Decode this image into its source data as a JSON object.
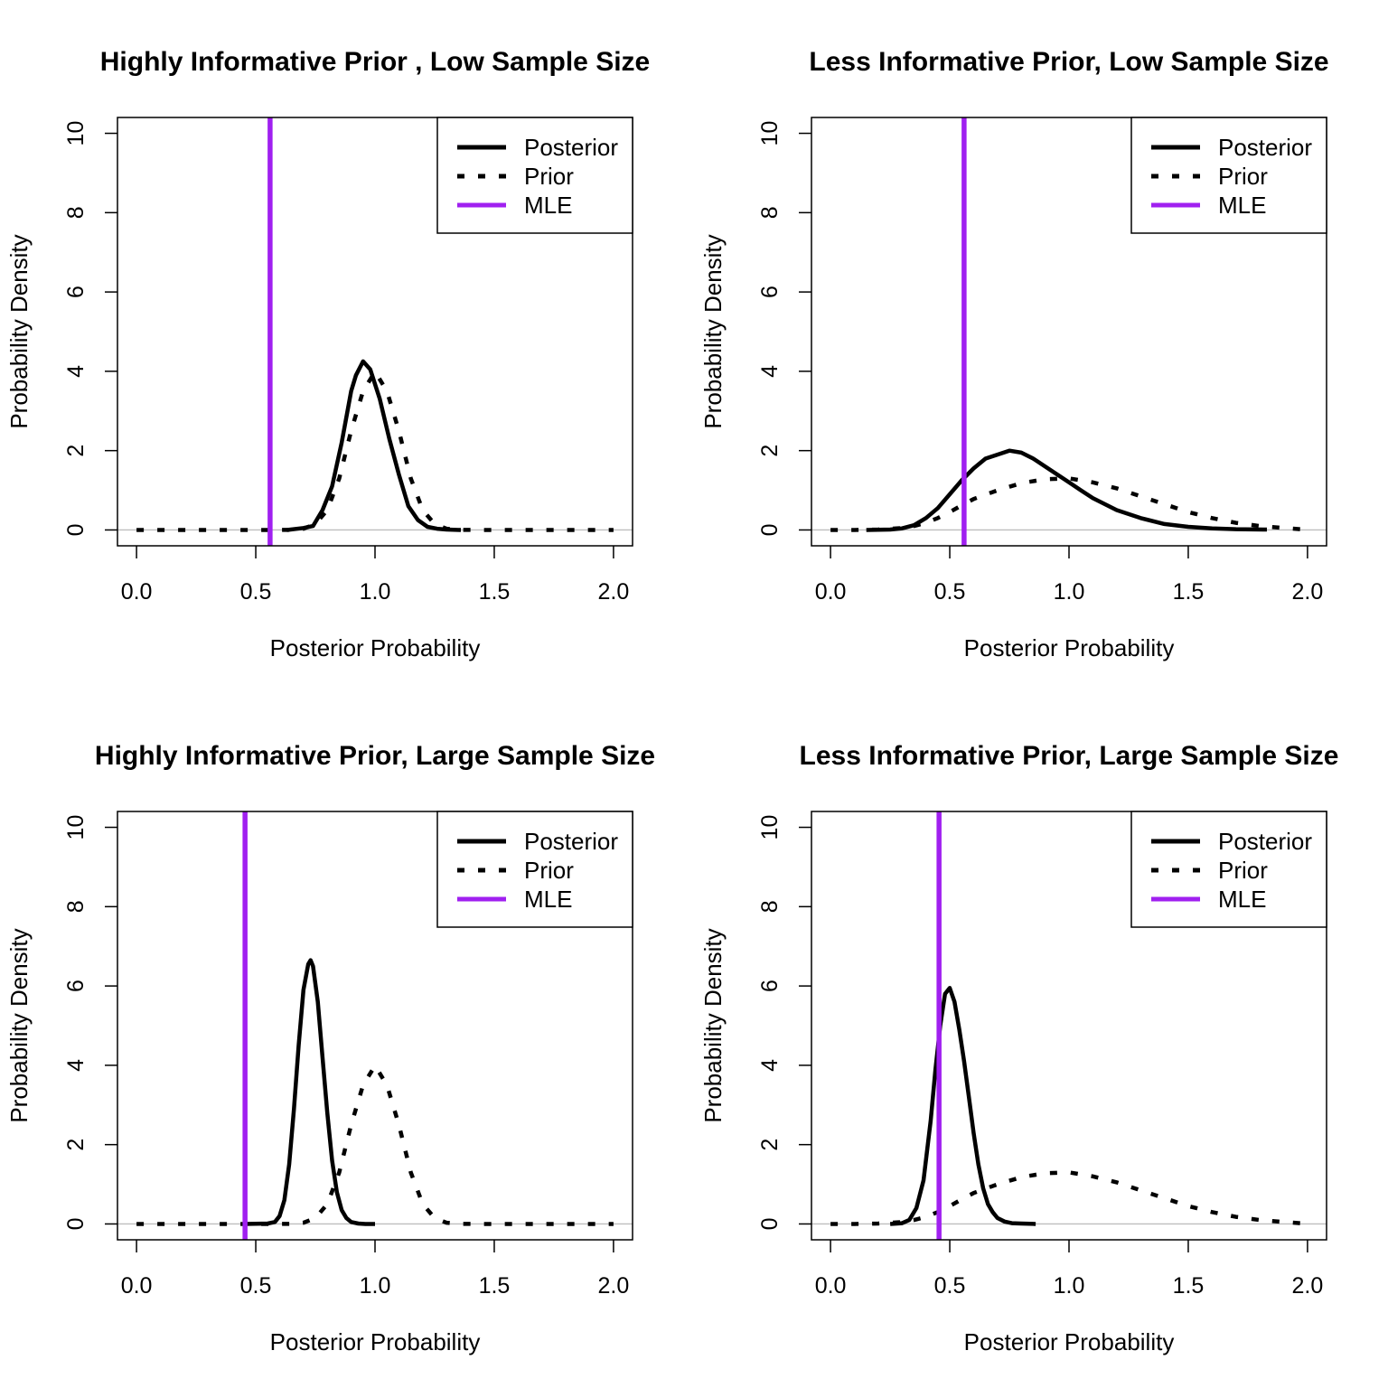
{
  "legend": {
    "entries": [
      "Posterior",
      "Prior",
      "MLE"
    ],
    "placement": "top-right"
  },
  "colors": {
    "posterior": "#000000",
    "prior": "#000000",
    "mle": "#a020f0",
    "zero_line": "#bebebe"
  },
  "chart_data": [
    {
      "type": "line",
      "title": "Highly Informative Prior , Low Sample Size",
      "xlabel": "Posterior Probability",
      "ylabel": "Probability Density",
      "xlim": [
        0,
        2
      ],
      "ylim": [
        0,
        10
      ],
      "xticks": [
        "0.0",
        "0.5",
        "1.0",
        "1.5",
        "2.0"
      ],
      "yticks": [
        "0",
        "2",
        "4",
        "6",
        "8",
        "10"
      ],
      "mle": 0.56,
      "series": [
        {
          "name": "Posterior",
          "x": [
            0.63,
            0.7,
            0.74,
            0.78,
            0.82,
            0.86,
            0.9,
            0.92,
            0.95,
            0.98,
            1.02,
            1.06,
            1.1,
            1.14,
            1.18,
            1.22,
            1.26,
            1.3,
            1.36
          ],
          "y": [
            0.0,
            0.05,
            0.1,
            0.5,
            1.1,
            2.2,
            3.5,
            3.9,
            4.25,
            4.05,
            3.3,
            2.3,
            1.4,
            0.6,
            0.25,
            0.08,
            0.03,
            0.01,
            0.0
          ]
        },
        {
          "name": "Prior",
          "x": [
            0.0,
            0.1,
            0.2,
            0.3,
            0.4,
            0.5,
            0.6,
            0.65,
            0.7,
            0.75,
            0.8,
            0.85,
            0.9,
            0.95,
            1.0,
            1.05,
            1.1,
            1.15,
            1.2,
            1.25,
            1.3,
            1.35,
            1.4,
            1.5,
            1.6,
            1.7,
            1.8,
            1.9,
            2.0
          ],
          "y": [
            0,
            0,
            0,
            0,
            0,
            0,
            0.001,
            0.004,
            0.03,
            0.15,
            0.5,
            1.3,
            2.5,
            3.5,
            3.99,
            3.5,
            2.5,
            1.3,
            0.5,
            0.15,
            0.03,
            0.004,
            0.001,
            0,
            0,
            0,
            0,
            0,
            0
          ]
        }
      ]
    },
    {
      "type": "line",
      "title": "Less Informative Prior, Low Sample Size",
      "xlabel": "Posterior Probability",
      "ylabel": "Probability Density",
      "xlim": [
        0,
        2
      ],
      "ylim": [
        0,
        10
      ],
      "xticks": [
        "0.0",
        "0.5",
        "1.0",
        "1.5",
        "2.0"
      ],
      "yticks": [
        "0",
        "2",
        "4",
        "6",
        "8",
        "10"
      ],
      "mle": 0.56,
      "series": [
        {
          "name": "Posterior",
          "x": [
            0.15,
            0.25,
            0.3,
            0.35,
            0.4,
            0.45,
            0.5,
            0.55,
            0.6,
            0.65,
            0.7,
            0.75,
            0.8,
            0.85,
            0.9,
            0.95,
            1.0,
            1.05,
            1.1,
            1.2,
            1.3,
            1.4,
            1.5,
            1.6,
            1.7,
            1.83
          ],
          "y": [
            0.0,
            0.01,
            0.04,
            0.12,
            0.3,
            0.55,
            0.9,
            1.25,
            1.55,
            1.8,
            1.9,
            2.0,
            1.95,
            1.8,
            1.6,
            1.4,
            1.2,
            1.0,
            0.8,
            0.5,
            0.3,
            0.15,
            0.08,
            0.04,
            0.02,
            0.01
          ]
        },
        {
          "name": "Prior",
          "x": [
            0.0,
            0.1,
            0.2,
            0.3,
            0.35,
            0.4,
            0.45,
            0.5,
            0.55,
            0.6,
            0.7,
            0.8,
            0.9,
            1.0,
            1.1,
            1.2,
            1.3,
            1.4,
            1.5,
            1.6,
            1.7,
            1.8,
            1.9,
            1.97
          ],
          "y": [
            0,
            0.0,
            0.01,
            0.05,
            0.1,
            0.18,
            0.3,
            0.45,
            0.62,
            0.78,
            1.0,
            1.18,
            1.28,
            1.3,
            1.2,
            1.05,
            0.85,
            0.65,
            0.45,
            0.3,
            0.18,
            0.1,
            0.05,
            0.02
          ]
        }
      ]
    },
    {
      "type": "line",
      "title": "Highly Informative Prior, Large Sample Size",
      "xlabel": "Posterior Probability",
      "ylabel": "Probability Density",
      "xlim": [
        0,
        2
      ],
      "ylim": [
        0,
        10
      ],
      "xticks": [
        "0.0",
        "0.5",
        "1.0",
        "1.5",
        "2.0"
      ],
      "yticks": [
        "0",
        "2",
        "4",
        "6",
        "8",
        "10"
      ],
      "mle": 0.455,
      "series": [
        {
          "name": "Posterior",
          "x": [
            0.45,
            0.55,
            0.58,
            0.6,
            0.62,
            0.64,
            0.66,
            0.68,
            0.7,
            0.72,
            0.73,
            0.74,
            0.76,
            0.78,
            0.8,
            0.82,
            0.84,
            0.86,
            0.88,
            0.9,
            0.93,
            0.96,
            1.0
          ],
          "y": [
            0.0,
            0.01,
            0.05,
            0.2,
            0.6,
            1.5,
            2.9,
            4.5,
            5.9,
            6.55,
            6.65,
            6.5,
            5.6,
            4.2,
            2.8,
            1.6,
            0.8,
            0.35,
            0.15,
            0.05,
            0.01,
            0.0,
            0.0
          ]
        },
        {
          "name": "Prior",
          "x": [
            0.0,
            0.1,
            0.2,
            0.3,
            0.4,
            0.5,
            0.6,
            0.65,
            0.7,
            0.75,
            0.8,
            0.85,
            0.9,
            0.95,
            1.0,
            1.05,
            1.1,
            1.15,
            1.2,
            1.25,
            1.3,
            1.35,
            1.4,
            1.5,
            1.6,
            1.7,
            1.8,
            1.9,
            2.0
          ],
          "y": [
            0,
            0,
            0,
            0,
            0,
            0,
            0.001,
            0.004,
            0.03,
            0.15,
            0.5,
            1.3,
            2.5,
            3.5,
            3.99,
            3.5,
            2.5,
            1.3,
            0.5,
            0.15,
            0.03,
            0.004,
            0.001,
            0,
            0,
            0,
            0,
            0,
            0
          ]
        }
      ]
    },
    {
      "type": "line",
      "title": "Less Informative Prior, Large Sample Size",
      "xlabel": "Posterior Probability",
      "ylabel": "Probability Density",
      "xlim": [
        0,
        2
      ],
      "ylim": [
        0,
        10
      ],
      "xticks": [
        "0.0",
        "0.5",
        "1.0",
        "1.5",
        "2.0"
      ],
      "yticks": [
        "0",
        "2",
        "4",
        "6",
        "8",
        "10"
      ],
      "mle": 0.455,
      "series": [
        {
          "name": "Posterior",
          "x": [
            0.25,
            0.3,
            0.33,
            0.36,
            0.39,
            0.42,
            0.44,
            0.46,
            0.48,
            0.5,
            0.52,
            0.54,
            0.56,
            0.58,
            0.6,
            0.62,
            0.64,
            0.66,
            0.68,
            0.7,
            0.73,
            0.76,
            0.8,
            0.86
          ],
          "y": [
            0.0,
            0.02,
            0.1,
            0.4,
            1.1,
            2.6,
            3.9,
            5.0,
            5.8,
            5.95,
            5.6,
            4.9,
            4.1,
            3.2,
            2.3,
            1.5,
            0.9,
            0.5,
            0.3,
            0.15,
            0.06,
            0.02,
            0.01,
            0.0
          ]
        },
        {
          "name": "Prior",
          "x": [
            0.0,
            0.1,
            0.2,
            0.3,
            0.35,
            0.4,
            0.45,
            0.5,
            0.55,
            0.6,
            0.7,
            0.8,
            0.9,
            1.0,
            1.1,
            1.2,
            1.3,
            1.4,
            1.5,
            1.6,
            1.7,
            1.8,
            1.9,
            1.97
          ],
          "y": [
            0,
            0.0,
            0.01,
            0.05,
            0.1,
            0.18,
            0.3,
            0.45,
            0.62,
            0.78,
            1.0,
            1.18,
            1.28,
            1.3,
            1.2,
            1.05,
            0.85,
            0.65,
            0.45,
            0.3,
            0.18,
            0.1,
            0.05,
            0.02
          ]
        }
      ]
    }
  ]
}
